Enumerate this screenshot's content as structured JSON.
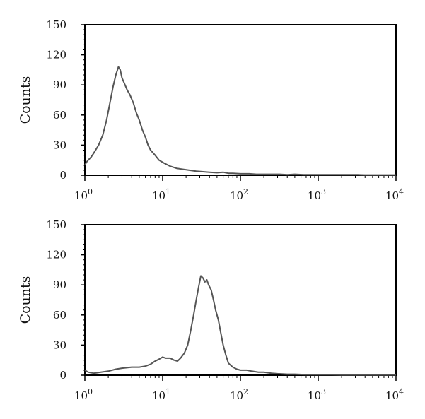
{
  "chart_data": [
    {
      "type": "line",
      "title": "",
      "xlabel": "",
      "ylabel": "Counts",
      "x_scale": "log",
      "xlim": [
        1,
        10000
      ],
      "ylim": [
        0,
        150
      ],
      "yticks": [
        0,
        30,
        60,
        90,
        120,
        150
      ],
      "xticks": [
        {
          "base": "10",
          "exp": "0"
        },
        {
          "base": "10",
          "exp": "1"
        },
        {
          "base": "10",
          "exp": "2"
        },
        {
          "base": "10",
          "exp": "3"
        },
        {
          "base": "10",
          "exp": "4"
        }
      ],
      "grid": false,
      "legend": "none",
      "line_color": "#555555",
      "series": [
        {
          "x": [
            1.0,
            1.05,
            1.1,
            1.2,
            1.3,
            1.5,
            1.7,
            1.9,
            2.1,
            2.3,
            2.5,
            2.7,
            2.85,
            3.0,
            3.2,
            3.5,
            3.8,
            4.2,
            4.6,
            5.0,
            5.5,
            6.0,
            6.5,
            7.0,
            8.0,
            9.0,
            10.5,
            12.5,
            15,
            18,
            22,
            27,
            33,
            40,
            50,
            60,
            70,
            80,
            100,
            130,
            160,
            200,
            250,
            320,
            400,
            500,
            650,
            800,
            1000,
            1300,
            1600,
            2000,
            2600,
            3200,
            4000,
            5000,
            6300,
            8000,
            10000
          ],
          "y": [
            10,
            13,
            15,
            18,
            22,
            30,
            40,
            55,
            72,
            88,
            100,
            108,
            105,
            97,
            92,
            85,
            80,
            72,
            62,
            55,
            45,
            38,
            30,
            25,
            20,
            15,
            12,
            9,
            7,
            6,
            5,
            4,
            3.5,
            3,
            2.5,
            3,
            2,
            2,
            1.5,
            1.5,
            1,
            1,
            1,
            1,
            0.5,
            1,
            0.5,
            0.5,
            0.5,
            0.5,
            0.5,
            0.5,
            0.5,
            0.5,
            0.3,
            0.3,
            0.3,
            0.3,
            0.3
          ]
        }
      ]
    },
    {
      "type": "line",
      "title": "",
      "xlabel": "",
      "ylabel": "Counts",
      "x_scale": "log",
      "xlim": [
        1,
        10000
      ],
      "ylim": [
        0,
        150
      ],
      "yticks": [
        0,
        30,
        60,
        90,
        120,
        150
      ],
      "xticks": [
        {
          "base": "10",
          "exp": "0"
        },
        {
          "base": "10",
          "exp": "1"
        },
        {
          "base": "10",
          "exp": "2"
        },
        {
          "base": "10",
          "exp": "3"
        },
        {
          "base": "10",
          "exp": "4"
        }
      ],
      "grid": false,
      "legend": "none",
      "line_color": "#555555",
      "series": [
        {
          "x": [
            1.0,
            1.1,
            1.3,
            1.6,
            2.0,
            2.5,
            3.0,
            4.0,
            5.0,
            6.0,
            7.0,
            8.0,
            9.0,
            10,
            11,
            12.5,
            14,
            15.5,
            17,
            19,
            21,
            23,
            25,
            27,
            29,
            31,
            33,
            35,
            37,
            39,
            42,
            45,
            48,
            52,
            56,
            60,
            65,
            70,
            80,
            90,
            100,
            120,
            140,
            170,
            200,
            250,
            300,
            400,
            500,
            700,
            1000,
            1500,
            2000,
            3000,
            5000,
            7000,
            10000
          ],
          "y": [
            5,
            3,
            2,
            3,
            4,
            6,
            7,
            8,
            8,
            9,
            11,
            14,
            16,
            18,
            17,
            17,
            15,
            14,
            17,
            22,
            30,
            45,
            60,
            75,
            88,
            99,
            97,
            93,
            95,
            90,
            85,
            75,
            65,
            55,
            42,
            30,
            20,
            12,
            8,
            6,
            5,
            5,
            4,
            3,
            3,
            2,
            1.5,
            1,
            1,
            0.5,
            0.5,
            0.5,
            0.3,
            0.3,
            0.3,
            0.3,
            0.3
          ]
        }
      ]
    }
  ]
}
